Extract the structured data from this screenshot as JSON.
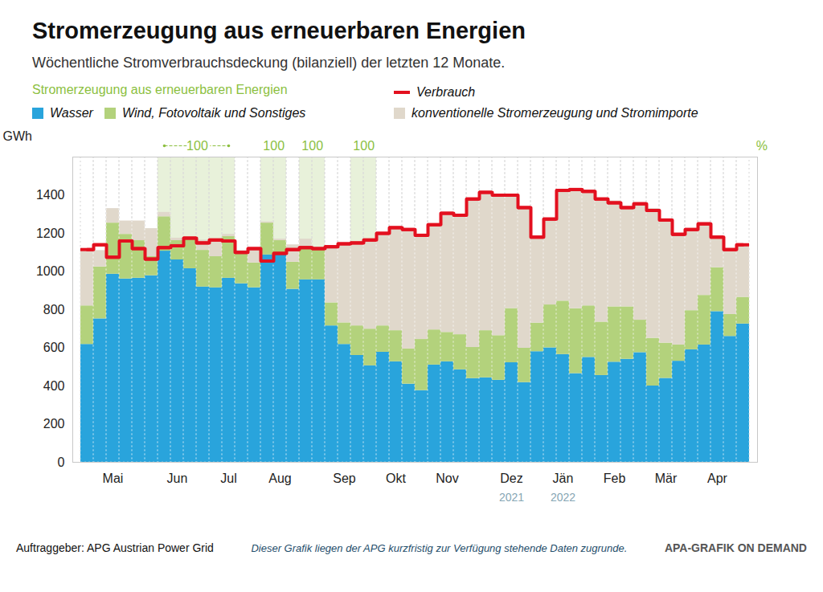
{
  "chart_data": {
    "type": "bar",
    "stacked": true,
    "title": "Stromerzeugung aus erneuerbaren Energien",
    "subtitle": "Wöchentliche Stromverbrauchsdeckung (bilanziell) der letzten 12 Monate.",
    "legend_group_title": "Stromerzeugung aus erneuerbaren Energien",
    "legend": "top",
    "grid": true,
    "ylabel": "GWh",
    "ylim": [
      0,
      1600
    ],
    "yticks": [
      0,
      200,
      400,
      600,
      800,
      1000,
      1200,
      1400
    ],
    "categories": [
      null,
      null,
      "Mai",
      null,
      null,
      null,
      null,
      "Jun",
      null,
      null,
      null,
      "Jul",
      null,
      null,
      null,
      "Aug",
      null,
      null,
      null,
      null,
      "Sep",
      null,
      null,
      null,
      "Okt",
      null,
      null,
      null,
      "Nov",
      null,
      null,
      null,
      null,
      "Dez",
      null,
      null,
      null,
      "Jän",
      null,
      null,
      null,
      "Feb",
      null,
      null,
      null,
      "Mär",
      null,
      null,
      null,
      "Apr",
      null,
      null
    ],
    "series": [
      {
        "name": "Wasser",
        "color": "#29a4dc",
        "values": [
          618,
          752,
          986,
          961,
          965,
          978,
          1107,
          1061,
          1015,
          919,
          915,
          965,
          936,
          915,
          1087,
          1087,
          907,
          957,
          957,
          715,
          618,
          560,
          506,
          577,
          527,
          410,
          376,
          510,
          527,
          485,
          439,
          443,
          430,
          522,
          418,
          580,
          600,
          565,
          465,
          550,
          455,
          525,
          540,
          575,
          400,
          440,
          530,
          590,
          615,
          790,
          660,
          725
        ]
      },
      {
        "name": "Wind, Fotovoltaik und Sonstiges",
        "color": "#b3d27c",
        "values": [
          202,
          272,
          268,
          234,
          197,
          100,
          180,
          101,
          163,
          192,
          163,
          218,
          163,
          130,
          167,
          75,
          142,
          163,
          163,
          121,
          113,
          155,
          192,
          138,
          163,
          184,
          268,
          184,
          154,
          184,
          163,
          247,
          234,
          284,
          180,
          150,
          225,
          280,
          340,
          270,
          280,
          290,
          275,
          170,
          250,
          185,
          85,
          205,
          260,
          230,
          115,
          140
        ]
      },
      {
        "name": "konventionelle Stromerzeugung und Stromimporte",
        "color": "#e0d8cb",
        "values": [
          290,
          86,
          76,
          70,
          103,
          147,
          23,
          13,
          2,
          54,
          87,
          12,
          11,
          75,
          6,
          8,
          91,
          50,
          5,
          289,
          414,
          435,
          467,
          485,
          540,
          626,
          546,
          551,
          624,
          626,
          778,
          730,
          736,
          599,
          737,
          450,
          450,
          580,
          630,
          600,
          650,
          555,
          525,
          615,
          680,
          645,
          580,
          430,
          380,
          165,
          345,
          275
        ]
      },
      {
        "name": "Verbrauch",
        "type": "line",
        "line_style": "step",
        "color": "#e3101f",
        "values": [
          1115,
          1140,
          1075,
          1160,
          1120,
          1065,
          1125,
          1135,
          1175,
          1150,
          1165,
          1160,
          1100,
          1120,
          1055,
          1095,
          1115,
          1125,
          1120,
          1130,
          1145,
          1150,
          1165,
          1200,
          1230,
          1220,
          1190,
          1245,
          1305,
          1295,
          1380,
          1415,
          1400,
          1400,
          1335,
          1180,
          1275,
          1425,
          1430,
          1420,
          1380,
          1360,
          1335,
          1355,
          1320,
          1270,
          1195,
          1220,
          1250,
          1180,
          1115,
          1140
        ]
      }
    ],
    "annotations": [
      {
        "text": "100",
        "from": 6,
        "to": 11
      },
      {
        "text": "100",
        "from": 14,
        "to": 15
      },
      {
        "text": "100",
        "from": 17,
        "to": 18
      },
      {
        "text": "100",
        "from": 21,
        "to": 22
      }
    ],
    "annotation_unit": "%",
    "year_labels": [
      {
        "text": "2021",
        "week": 33
      },
      {
        "text": "2022",
        "week": 37
      }
    ],
    "source": "Auftraggeber: APG Austrian Power Grid",
    "note": "Dieser Grafik liegen der APG kurzfristig zur Verfügung stehende Daten zugrunde.",
    "credit": "APA-GRAFIK ON DEMAND"
  }
}
